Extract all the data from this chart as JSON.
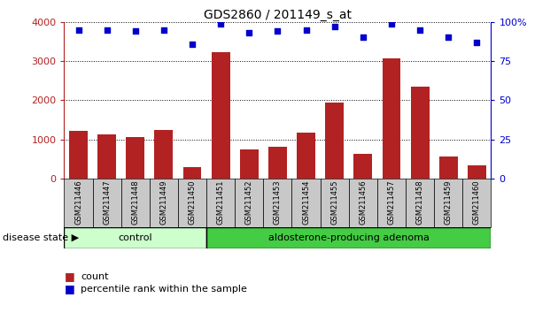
{
  "title": "GDS2860 / 201149_s_at",
  "samples": [
    "GSM211446",
    "GSM211447",
    "GSM211448",
    "GSM211449",
    "GSM211450",
    "GSM211451",
    "GSM211452",
    "GSM211453",
    "GSM211454",
    "GSM211455",
    "GSM211456",
    "GSM211457",
    "GSM211458",
    "GSM211459",
    "GSM211460"
  ],
  "counts": [
    1220,
    1130,
    1050,
    1240,
    290,
    3230,
    730,
    810,
    1170,
    1930,
    620,
    3060,
    2340,
    570,
    340
  ],
  "percentiles": [
    95,
    95,
    94,
    95,
    86,
    99,
    93,
    94,
    95,
    97,
    90,
    99,
    95,
    90,
    87
  ],
  "bar_color": "#B22222",
  "dot_color": "#0000CC",
  "n_control": 5,
  "n_adenoma": 10,
  "control_label": "control",
  "adenoma_label": "aldosterone-producing adenoma",
  "control_color": "#ccffcc",
  "adenoma_color": "#44cc44",
  "disease_state_label": "disease state",
  "ylim_left": [
    0,
    4000
  ],
  "ylim_right": [
    0,
    100
  ],
  "yticks_left": [
    0,
    1000,
    2000,
    3000,
    4000
  ],
  "yticks_right": [
    0,
    25,
    50,
    75,
    100
  ],
  "legend_count": "count",
  "legend_percentile": "percentile rank within the sample",
  "grid_color": "#000000"
}
